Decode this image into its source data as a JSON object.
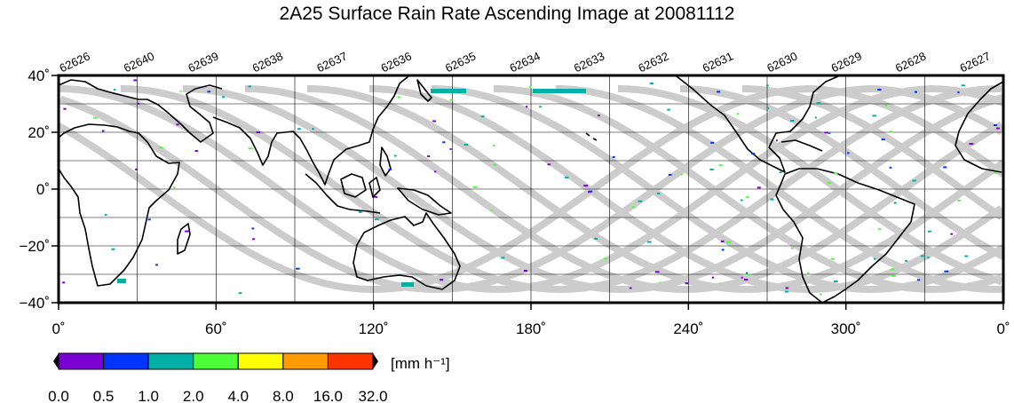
{
  "title": "2A25 Surface Rain Rate Ascending Image at 20081112",
  "map": {
    "lon_range": [
      0,
      360
    ],
    "lat_range": [
      -40,
      40
    ],
    "x_tick_labels": [
      "0˚",
      "60˚",
      "120˚",
      "180˚",
      "240˚",
      "300˚",
      "0˚"
    ],
    "y_tick_labels": [
      "40˚",
      "20˚",
      "0˚",
      "−20˚",
      "−40˚"
    ],
    "gridlines": true,
    "orbit_numbers": [
      "62626",
      "62640",
      "62639",
      "62638",
      "62637",
      "62636",
      "62635",
      "62634",
      "62633",
      "62632",
      "62631",
      "62630",
      "62629",
      "62628",
      "62627"
    ],
    "swath_color": "#cccccc",
    "coastline_color": "#000000"
  },
  "colorbar": {
    "unit_label": "[mm h⁻¹]",
    "tick_labels": [
      "0.0",
      "0.5",
      "1.0",
      "2.0",
      "4.0",
      "8.0",
      "16.0",
      "32.0"
    ],
    "colors": [
      "#7b00d6",
      "#0034ff",
      "#00b0a6",
      "#4cff38",
      "#ffff00",
      "#ff9a00",
      "#ff3300"
    ]
  }
}
